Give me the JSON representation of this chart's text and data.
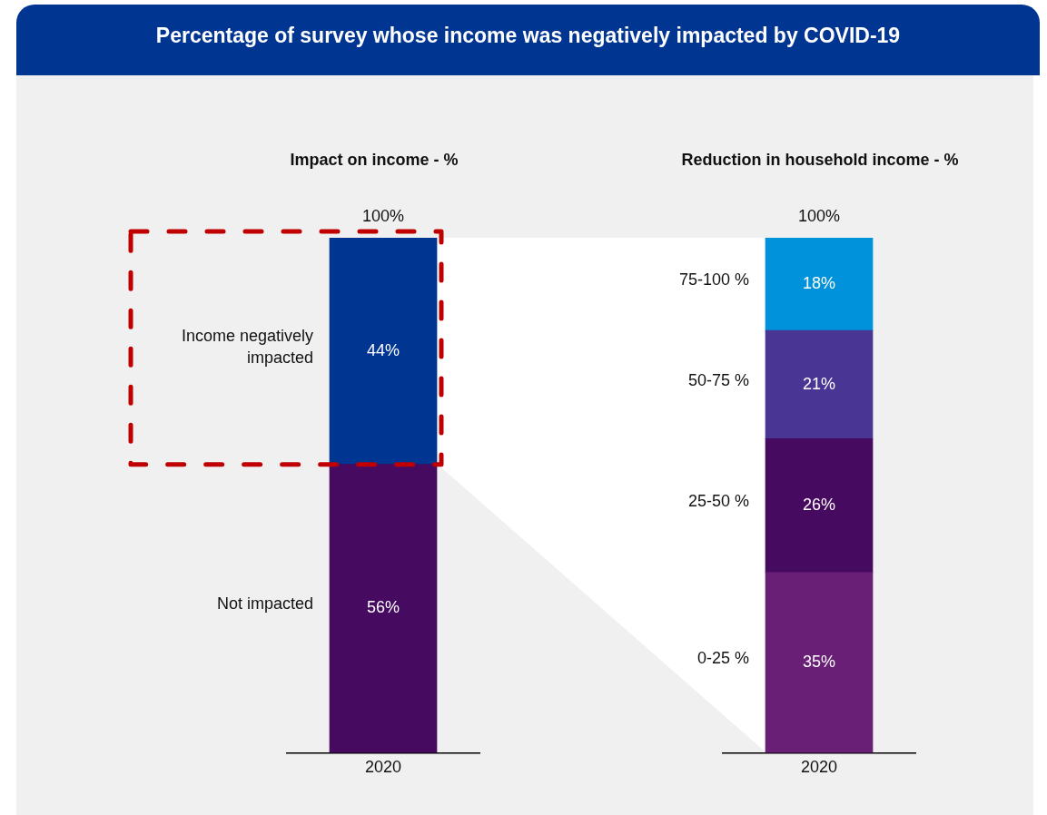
{
  "chart_data": [
    {
      "type": "bar",
      "title": "Percentage of survey whose income was negatively impacted by COVID-19",
      "subtitle": "Impact on income - %",
      "categories": [
        "2020"
      ],
      "stacked": true,
      "series": [
        {
          "name": "Not impacted",
          "color": "#470a61",
          "values": [
            56
          ],
          "value_labels": [
            "56%"
          ]
        },
        {
          "name": "Income negatively impacted",
          "color": "#003591",
          "values": [
            44
          ],
          "value_labels": [
            "44%"
          ]
        }
      ],
      "totals": [
        "100%"
      ],
      "ylim": [
        0,
        100
      ],
      "tick_labels": "x",
      "grid": false,
      "legend": false
    },
    {
      "type": "bar",
      "subtitle": "Reduction in household income - %",
      "categories": [
        "2020"
      ],
      "stacked": true,
      "series": [
        {
          "name": "0-25 %",
          "color": "#6a1f77",
          "values": [
            35
          ],
          "value_labels": [
            "35%"
          ]
        },
        {
          "name": "25-50 %",
          "color": "#470a61",
          "values": [
            26
          ],
          "value_labels": [
            "26%"
          ]
        },
        {
          "name": "50-75 %",
          "color": "#483594",
          "values": [
            21
          ],
          "value_labels": [
            "21%"
          ]
        },
        {
          "name": "75-100 %",
          "color": "#0093db",
          "values": [
            18
          ],
          "value_labels": [
            "18%"
          ]
        }
      ],
      "totals": [
        "100%"
      ],
      "ylim": [
        0,
        100
      ],
      "tick_labels": "x",
      "grid": false,
      "legend": false
    }
  ]
}
